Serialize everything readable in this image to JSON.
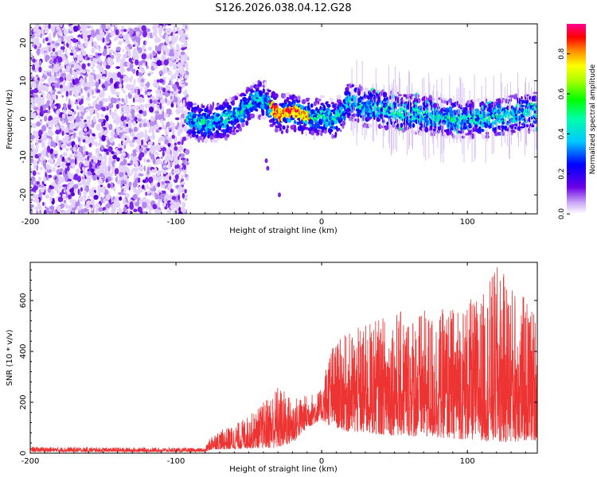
{
  "title": "S126.2026.038.04.12.G28",
  "chart_data": [
    {
      "type": "heatmap",
      "name": "spectrogram",
      "xlabel": "Height of straight line (km)",
      "ylabel": "Frequency (Hz)",
      "xlim": [
        -200,
        148
      ],
      "ylim": [
        -25,
        25
      ],
      "xticks": [
        "-200",
        "-100",
        "0",
        "100"
      ],
      "xtick_values": [
        -200,
        -100,
        0,
        100
      ],
      "yticks": [
        "20",
        "10",
        "0",
        "-10",
        "-20"
      ],
      "ytick_values": [
        20,
        10,
        0,
        -10,
        -20
      ],
      "colorbar": {
        "label": "Normalized spectral amplitude",
        "range": [
          0,
          0.95
        ],
        "ticks": [
          "0.0",
          "0.2",
          "0.4",
          "0.6",
          "0.8"
        ],
        "tick_values": [
          0.0,
          0.2,
          0.4,
          0.6,
          0.8
        ]
      },
      "noise_region_km": [
        -200,
        -92
      ],
      "signal_track": [
        {
          "x": -92,
          "f": 0
        },
        {
          "x": -85,
          "f": -1
        },
        {
          "x": -75,
          "f": -1
        },
        {
          "x": -65,
          "f": 0
        },
        {
          "x": -55,
          "f": 2
        },
        {
          "x": -45,
          "f": 5
        },
        {
          "x": -40,
          "f": 5
        },
        {
          "x": -35,
          "f": 3
        },
        {
          "x": -28,
          "f": 1
        },
        {
          "x": -20,
          "f": 2
        },
        {
          "x": -12,
          "f": 1
        },
        {
          "x": -5,
          "f": 0
        },
        {
          "x": 0,
          "f": 1
        },
        {
          "x": 10,
          "f": 0
        },
        {
          "x": 20,
          "f": 5
        },
        {
          "x": 30,
          "f": 3
        },
        {
          "x": 50,
          "f": 2
        },
        {
          "x": 70,
          "f": 1
        },
        {
          "x": 90,
          "f": 0
        },
        {
          "x": 110,
          "f": 0
        },
        {
          "x": 130,
          "f": 1
        },
        {
          "x": 148,
          "f": 2
        }
      ],
      "peak_region_km": [
        -35,
        -8
      ]
    },
    {
      "type": "line",
      "name": "snr",
      "xlabel": "Height of straight line (km)",
      "ylabel": "SNR (10 * v/v)",
      "xlim": [
        -200,
        148
      ],
      "ylim": [
        0,
        750
      ],
      "xticks": [
        "-200",
        "-100",
        "0",
        "100"
      ],
      "xtick_values": [
        -200,
        -100,
        0,
        100
      ],
      "yticks": [
        "0",
        "200",
        "400",
        "600"
      ],
      "ytick_values": [
        0,
        200,
        400,
        600
      ],
      "color": "#ee3333",
      "envelope": [
        {
          "x": -200,
          "base": 5,
          "max": 25
        },
        {
          "x": -80,
          "base": 5,
          "max": 20
        },
        {
          "x": -75,
          "base": 15,
          "max": 80
        },
        {
          "x": -60,
          "base": 15,
          "max": 110
        },
        {
          "x": -45,
          "base": 20,
          "max": 170
        },
        {
          "x": -30,
          "base": 20,
          "max": 270
        },
        {
          "x": -20,
          "base": 40,
          "max": 220
        },
        {
          "x": -10,
          "base": 100,
          "max": 230
        },
        {
          "x": 0,
          "base": 130,
          "max": 250
        },
        {
          "x": 5,
          "base": 110,
          "max": 420
        },
        {
          "x": 20,
          "base": 80,
          "max": 480
        },
        {
          "x": 50,
          "base": 70,
          "max": 560
        },
        {
          "x": 80,
          "base": 60,
          "max": 560
        },
        {
          "x": 110,
          "base": 50,
          "max": 620
        },
        {
          "x": 120,
          "base": 40,
          "max": 740
        },
        {
          "x": 148,
          "base": 50,
          "max": 560
        }
      ]
    }
  ]
}
